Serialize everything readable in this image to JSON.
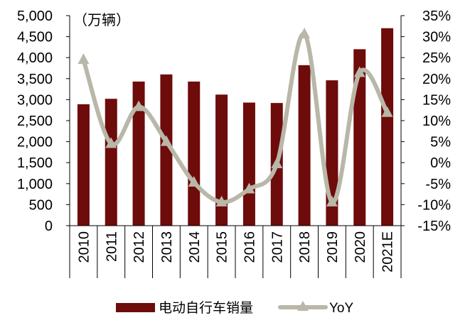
{
  "chart_data": {
    "type": "bar",
    "categories": [
      "2010",
      "2011",
      "2012",
      "2013",
      "2014",
      "2015",
      "2016",
      "2017",
      "2018",
      "2019",
      "2020",
      "2021E"
    ],
    "unit_label": "（万辆）",
    "series": [
      {
        "name": "电动自行车销量",
        "type": "bar",
        "axis": "left",
        "values": [
          2890,
          3020,
          3430,
          3600,
          3430,
          3120,
          2930,
          2920,
          3820,
          3460,
          4200,
          4700
        ]
      },
      {
        "name": "YoY",
        "type": "line",
        "axis": "right",
        "values": [
          24.5,
          4.5,
          13.3,
          5.0,
          -4.7,
          -9.4,
          -6.3,
          -0.3,
          30.6,
          -9.4,
          21.4,
          11.9
        ]
      }
    ],
    "left_axis": {
      "ylim": [
        0,
        5000
      ],
      "ticks": [
        0,
        500,
        1000,
        1500,
        2000,
        2500,
        3000,
        3500,
        4000,
        4500,
        5000
      ],
      "tick_labels": [
        "0",
        "500",
        "1,000",
        "1,500",
        "2,000",
        "2,500",
        "3,000",
        "3,500",
        "4,000",
        "4,500",
        "5,000"
      ]
    },
    "right_axis": {
      "ylim": [
        -15,
        35
      ],
      "ticks": [
        -15,
        -10,
        -5,
        0,
        5,
        10,
        15,
        20,
        25,
        30,
        35
      ],
      "tick_labels": [
        "-15%",
        "-10%",
        "-5%",
        "0%",
        "5%",
        "10%",
        "15%",
        "20%",
        "25%",
        "30%",
        "35%"
      ]
    },
    "legend": {
      "position": "bottom"
    },
    "grid": false,
    "colors": {
      "bar": "#6e0b0b",
      "line": "#b9b7a8"
    }
  }
}
